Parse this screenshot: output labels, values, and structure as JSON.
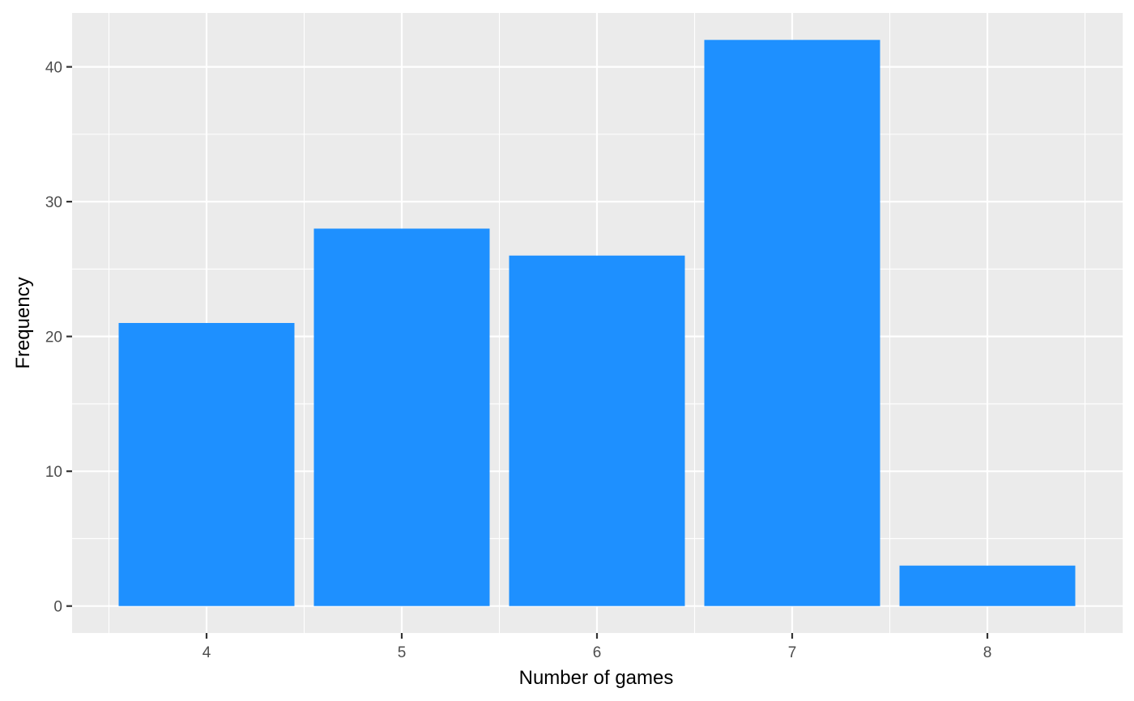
{
  "chart_data": {
    "type": "bar",
    "categories": [
      "4",
      "5",
      "6",
      "7",
      "8"
    ],
    "values": [
      21,
      28,
      26,
      42,
      3
    ],
    "title": "",
    "xlabel": "Number of games",
    "ylabel": "Frequency",
    "ylim": [
      -2,
      44
    ],
    "y_ticks": [
      "0",
      "10",
      "20",
      "30",
      "40"
    ],
    "grid": true,
    "legend": "none",
    "colors": {
      "bar": "#1e90ff",
      "panel": "#ebebeb",
      "grid": "#ffffff"
    }
  }
}
